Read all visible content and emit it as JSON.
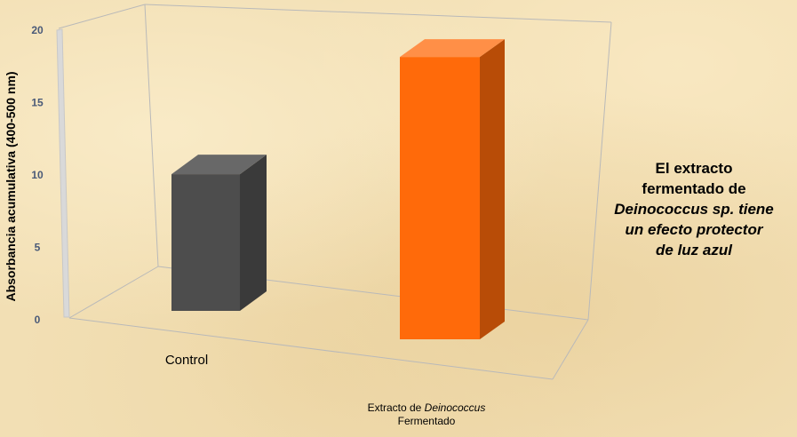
{
  "chart_data": {
    "type": "bar",
    "categories": [
      "Control",
      "Extracto de Deinococcus Fermentado"
    ],
    "category_labels": [
      {
        "text": "Control"
      },
      {
        "prefix": "Extracto de ",
        "italic": "Deinococcus",
        "suffix": "Fermentado"
      }
    ],
    "values": [
      9.5,
      19.5
    ],
    "bar_colors": [
      "#4d4d4d",
      "#ff6a0a"
    ],
    "ylabel": "Absorbancia acumulativa (400-500 nm)",
    "ylim": [
      0,
      20
    ],
    "yticks": [
      0,
      5,
      10,
      15,
      20
    ],
    "grid": false,
    "style": "3d-column"
  },
  "annotation": {
    "line1": "El extracto",
    "line2": "fermentado de",
    "line3": "Deinococcus sp. tiene",
    "line4": "un efecto protector",
    "line5": "de luz azul"
  },
  "colors": {
    "background": "#f2dfb4",
    "axis_box": "#b9b9b9",
    "tick_text": "#4a5a78"
  }
}
